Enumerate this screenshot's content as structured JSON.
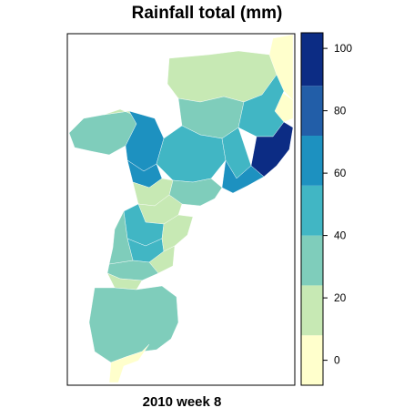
{
  "title": "Rainfall total (mm)",
  "caption": "2010 week 8",
  "legend": {
    "min": -8,
    "max": 105,
    "ticks": [
      0,
      20,
      40,
      60,
      80,
      100
    ],
    "bins": [
      {
        "from": -8,
        "to": 8,
        "color": "#ffffcc"
      },
      {
        "from": 8,
        "to": 24,
        "color": "#c7e9b4"
      },
      {
        "from": 24,
        "to": 40,
        "color": "#7fcdbb"
      },
      {
        "from": 40,
        "to": 56,
        "color": "#41b6c4"
      },
      {
        "from": 56,
        "to": 72,
        "color": "#1d91c0"
      },
      {
        "from": 72,
        "to": 88,
        "color": "#225ea8"
      },
      {
        "from": 88,
        "to": 105,
        "color": "#0c2c84"
      }
    ]
  },
  "map": {
    "region_values": [
      4,
      4,
      20,
      38,
      45,
      38,
      20,
      95,
      70,
      60,
      45,
      40,
      62,
      35,
      18,
      22,
      48,
      52,
      20,
      18,
      30,
      15,
      32,
      38,
      2,
      1,
      3
    ]
  }
}
